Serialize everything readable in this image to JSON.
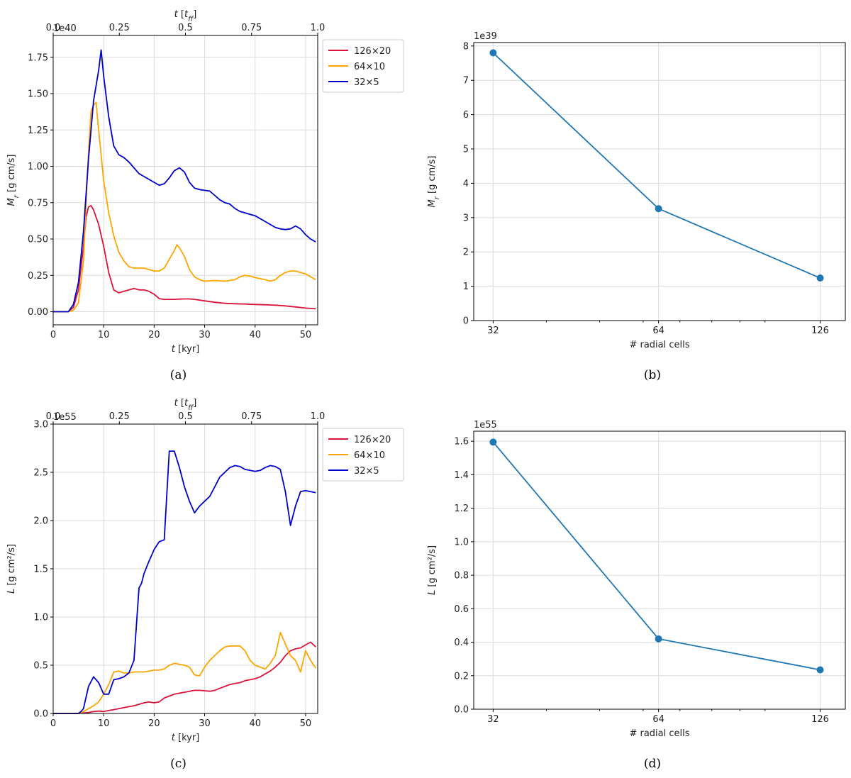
{
  "chart_data": [
    {
      "id": "a",
      "type": "line",
      "caption": "(a)",
      "xlabel": "t [kyr]",
      "ylabel": "M_r [g cm/s]",
      "top_xlabel": "t [t_ff]",
      "scale_label": "1e40",
      "xlim": [
        0,
        52.4
      ],
      "ylim": [
        -0.09,
        1.9
      ],
      "xticks": [
        "0",
        "10",
        "20",
        "30",
        "40",
        "50"
      ],
      "xtick_values": [
        0,
        10,
        20,
        30,
        40,
        50
      ],
      "yticks": [
        "0.00",
        "0.25",
        "0.50",
        "0.75",
        "1.00",
        "1.25",
        "1.50",
        "1.75"
      ],
      "ytick_values": [
        0,
        0.25,
        0.5,
        0.75,
        1.0,
        1.25,
        1.5,
        1.75
      ],
      "top_ticks": [
        "0.0",
        "0.25",
        "0.5",
        "0.75",
        "1.0"
      ],
      "top_tick_values": [
        0,
        0.25,
        0.5,
        0.75,
        1.0
      ],
      "top_lim": [
        0,
        1.0
      ],
      "legend": "top-right-outside",
      "series": [
        {
          "name": "126×20",
          "color": "#dc143c",
          "x": [
            0,
            3,
            4,
            5,
            6,
            6.5,
            7,
            7.5,
            8,
            9,
            10,
            11,
            12,
            13,
            14,
            15,
            16,
            17,
            18,
            19,
            20,
            21,
            22,
            23,
            24,
            25,
            26,
            27,
            28,
            30,
            32,
            34,
            36,
            38,
            40,
            42,
            44,
            46,
            48,
            50,
            52
          ],
          "y": [
            0,
            0,
            0.03,
            0.15,
            0.45,
            0.65,
            0.72,
            0.73,
            0.7,
            0.6,
            0.45,
            0.27,
            0.15,
            0.13,
            0.14,
            0.15,
            0.16,
            0.15,
            0.15,
            0.14,
            0.12,
            0.09,
            0.085,
            0.085,
            0.085,
            0.087,
            0.088,
            0.088,
            0.085,
            0.075,
            0.065,
            0.058,
            0.055,
            0.053,
            0.05,
            0.048,
            0.045,
            0.04,
            0.033,
            0.025,
            0.02
          ]
        },
        {
          "name": "64×10",
          "color": "#ffa500",
          "x": [
            0,
            3,
            4,
            5,
            6,
            7,
            7.5,
            8,
            8.5,
            9,
            10,
            11,
            12,
            13,
            14,
            15,
            16,
            18,
            20,
            21,
            22,
            23,
            24,
            24.5,
            25,
            26,
            27,
            28,
            29,
            30,
            32,
            34,
            36,
            37,
            38,
            39,
            40,
            42,
            43,
            44,
            45,
            46,
            47,
            48,
            50,
            52
          ],
          "y": [
            0,
            0,
            0.01,
            0.06,
            0.35,
            1.1,
            1.38,
            1.42,
            1.44,
            1.25,
            0.9,
            0.68,
            0.52,
            0.41,
            0.35,
            0.31,
            0.3,
            0.3,
            0.28,
            0.28,
            0.3,
            0.36,
            0.42,
            0.46,
            0.44,
            0.38,
            0.29,
            0.24,
            0.22,
            0.21,
            0.215,
            0.21,
            0.22,
            0.24,
            0.25,
            0.245,
            0.235,
            0.22,
            0.21,
            0.22,
            0.25,
            0.27,
            0.28,
            0.28,
            0.26,
            0.22
          ]
        },
        {
          "name": "32×5",
          "color": "#0000cd",
          "x": [
            0,
            3,
            4,
            5,
            6,
            7,
            8,
            9,
            9.5,
            10,
            11,
            12,
            13,
            14,
            15,
            16,
            17,
            18,
            19,
            20,
            21,
            22,
            23,
            24,
            25,
            26,
            27,
            28,
            29,
            30,
            31,
            32,
            33,
            34,
            35,
            36,
            37,
            38,
            39,
            40,
            41,
            42,
            43,
            44,
            45,
            46,
            47,
            48,
            49,
            50,
            51,
            52
          ],
          "y": [
            0,
            0,
            0.05,
            0.2,
            0.55,
            1.05,
            1.45,
            1.66,
            1.8,
            1.62,
            1.34,
            1.14,
            1.08,
            1.06,
            1.03,
            0.99,
            0.95,
            0.93,
            0.91,
            0.89,
            0.87,
            0.88,
            0.92,
            0.97,
            0.99,
            0.96,
            0.89,
            0.85,
            0.84,
            0.835,
            0.83,
            0.8,
            0.77,
            0.75,
            0.74,
            0.71,
            0.69,
            0.68,
            0.67,
            0.66,
            0.64,
            0.62,
            0.6,
            0.58,
            0.57,
            0.565,
            0.57,
            0.59,
            0.57,
            0.53,
            0.5,
            0.48
          ]
        }
      ]
    },
    {
      "id": "b",
      "type": "line",
      "caption": "(b)",
      "xlabel": "# radial cells",
      "ylabel": "M_r [g cm/s]",
      "scale_label": "1e39",
      "xscale": "log",
      "xlim": [
        29.5,
        140
      ],
      "ylim": [
        0,
        8.1
      ],
      "xticks": [
        "32",
        "64",
        "126"
      ],
      "xtick_values": [
        32,
        64,
        126
      ],
      "minor_xticks": [
        40,
        50,
        60,
        70,
        80,
        90,
        100
      ],
      "yticks": [
        "0",
        "1",
        "2",
        "3",
        "4",
        "5",
        "6",
        "7",
        "8"
      ],
      "ytick_values": [
        0,
        1,
        2,
        3,
        4,
        5,
        6,
        7,
        8
      ],
      "series": [
        {
          "name": "M_r",
          "color": "#1f77b4",
          "x": [
            32,
            64,
            126
          ],
          "y": [
            7.8,
            3.26,
            1.24
          ]
        }
      ]
    },
    {
      "id": "c",
      "type": "line",
      "caption": "(c)",
      "xlabel": "t [kyr]",
      "ylabel": "L [g cm²/s]",
      "top_xlabel": "t [t_ff]",
      "scale_label": "1e55",
      "xlim": [
        0,
        52.4
      ],
      "ylim": [
        0,
        3.0
      ],
      "xticks": [
        "0",
        "10",
        "20",
        "30",
        "40",
        "50"
      ],
      "xtick_values": [
        0,
        10,
        20,
        30,
        40,
        50
      ],
      "yticks": [
        "0.0",
        "0.5",
        "1.0",
        "1.5",
        "2.0",
        "2.5",
        "3.0"
      ],
      "ytick_values": [
        0,
        0.5,
        1.0,
        1.5,
        2.0,
        2.5,
        3.0
      ],
      "top_ticks": [
        "0.0",
        "0.25",
        "0.5",
        "0.75",
        "1.0"
      ],
      "top_tick_values": [
        0,
        0.25,
        0.5,
        0.75,
        1.0
      ],
      "top_lim": [
        0,
        1.0
      ],
      "legend": "top-right-outside",
      "series": [
        {
          "name": "126×20",
          "color": "#dc143c",
          "x": [
            0,
            5,
            6,
            7,
            8,
            9,
            10,
            11,
            12,
            14,
            16,
            18,
            19,
            20,
            21,
            22,
            23,
            24,
            25,
            26,
            27,
            28,
            29,
            30,
            31,
            32,
            33,
            34,
            35,
            36,
            37,
            38,
            39,
            40,
            41,
            42,
            43,
            44,
            45,
            46,
            47,
            48,
            49,
            50,
            51,
            52
          ],
          "y": [
            0,
            0,
            0.005,
            0.01,
            0.02,
            0.025,
            0.02,
            0.03,
            0.04,
            0.06,
            0.08,
            0.11,
            0.12,
            0.11,
            0.12,
            0.16,
            0.18,
            0.2,
            0.21,
            0.22,
            0.23,
            0.24,
            0.24,
            0.235,
            0.23,
            0.24,
            0.26,
            0.28,
            0.3,
            0.31,
            0.32,
            0.34,
            0.35,
            0.36,
            0.38,
            0.41,
            0.44,
            0.48,
            0.53,
            0.6,
            0.65,
            0.67,
            0.68,
            0.71,
            0.74,
            0.69
          ]
        },
        {
          "name": "64×10",
          "color": "#ffa500",
          "x": [
            0,
            5,
            6,
            7,
            8,
            9,
            10,
            11,
            12,
            13,
            14,
            15,
            16,
            17,
            18,
            19,
            20,
            21,
            22,
            23,
            24,
            25,
            26,
            27,
            28,
            29,
            30,
            31,
            32,
            33,
            34,
            35,
            36,
            37,
            38,
            39,
            40,
            41,
            42,
            43,
            44,
            45,
            46,
            47,
            48,
            49,
            50,
            51,
            52
          ],
          "y": [
            0,
            0,
            0.02,
            0.05,
            0.08,
            0.12,
            0.2,
            0.3,
            0.43,
            0.44,
            0.42,
            0.42,
            0.43,
            0.43,
            0.43,
            0.44,
            0.45,
            0.45,
            0.46,
            0.5,
            0.52,
            0.51,
            0.5,
            0.48,
            0.4,
            0.39,
            0.48,
            0.55,
            0.6,
            0.65,
            0.69,
            0.7,
            0.7,
            0.7,
            0.65,
            0.55,
            0.5,
            0.48,
            0.46,
            0.52,
            0.6,
            0.84,
            0.72,
            0.6,
            0.55,
            0.43,
            0.65,
            0.55,
            0.47
          ]
        },
        {
          "name": "32×5",
          "color": "#0000cd",
          "x": [
            0,
            5,
            5.5,
            6,
            7,
            8,
            9,
            10,
            11,
            12,
            13,
            14,
            15,
            16,
            17,
            17.5,
            18,
            19,
            20,
            21,
            22,
            23,
            23.5,
            24,
            25,
            26,
            27,
            28,
            29,
            30,
            31,
            32,
            33,
            34,
            35,
            36,
            37,
            38,
            39,
            40,
            41,
            42,
            43,
            44,
            45,
            46,
            47,
            48,
            49,
            50,
            51,
            52
          ],
          "y": [
            0,
            0,
            0.02,
            0.05,
            0.28,
            0.38,
            0.32,
            0.2,
            0.2,
            0.35,
            0.36,
            0.38,
            0.42,
            0.55,
            1.3,
            1.35,
            1.45,
            1.58,
            1.7,
            1.78,
            1.8,
            2.72,
            2.72,
            2.72,
            2.55,
            2.35,
            2.2,
            2.08,
            2.15,
            2.2,
            2.25,
            2.35,
            2.45,
            2.5,
            2.55,
            2.57,
            2.56,
            2.53,
            2.52,
            2.51,
            2.52,
            2.55,
            2.57,
            2.56,
            2.53,
            2.3,
            1.95,
            2.15,
            2.3,
            2.31,
            2.3,
            2.29
          ]
        }
      ]
    },
    {
      "id": "d",
      "type": "line",
      "caption": "(d)",
      "xlabel": "# radial cells",
      "ylabel": "L [g cm²/s]",
      "scale_label": "1e55",
      "xscale": "log",
      "xlim": [
        29.5,
        140
      ],
      "ylim": [
        0,
        1.66
      ],
      "xticks": [
        "32",
        "64",
        "126"
      ],
      "xtick_values": [
        32,
        64,
        126
      ],
      "minor_xticks": [
        40,
        50,
        60,
        70,
        80,
        90,
        100
      ],
      "yticks": [
        "0.0",
        "0.2",
        "0.4",
        "0.6",
        "0.8",
        "1.0",
        "1.2",
        "1.4",
        "1.6"
      ],
      "ytick_values": [
        0,
        0.2,
        0.4,
        0.6,
        0.8,
        1.0,
        1.2,
        1.4,
        1.6
      ],
      "series": [
        {
          "name": "L",
          "color": "#1f77b4",
          "x": [
            32,
            64,
            126
          ],
          "y": [
            1.595,
            0.42,
            0.235
          ]
        }
      ]
    }
  ]
}
